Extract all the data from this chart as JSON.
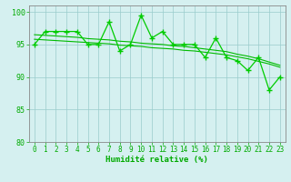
{
  "x": [
    0,
    1,
    2,
    3,
    4,
    5,
    6,
    7,
    8,
    9,
    10,
    11,
    12,
    13,
    14,
    15,
    16,
    17,
    18,
    19,
    20,
    21,
    22,
    23
  ],
  "y_main": [
    95,
    97,
    97,
    97,
    97,
    95,
    95,
    98.5,
    94,
    95,
    99.5,
    96,
    97,
    95,
    95,
    95,
    93,
    96,
    93,
    92.5,
    91,
    93,
    88,
    90
  ],
  "y_trend1": [
    96.5,
    96.4,
    96.3,
    96.2,
    96.1,
    95.9,
    95.8,
    95.7,
    95.5,
    95.4,
    95.2,
    95.1,
    95.0,
    94.8,
    94.7,
    94.5,
    94.3,
    94.1,
    93.9,
    93.5,
    93.2,
    92.8,
    92.3,
    91.8
  ],
  "y_trend2": [
    95.8,
    95.7,
    95.6,
    95.5,
    95.4,
    95.3,
    95.2,
    95.1,
    94.9,
    94.8,
    94.7,
    94.5,
    94.4,
    94.3,
    94.1,
    94.0,
    93.8,
    93.6,
    93.4,
    93.1,
    92.8,
    92.4,
    92.0,
    91.5
  ],
  "line_color": "#00cc00",
  "trend_color": "#00bb00",
  "bg_color": "#d5f0f0",
  "grid_color": "#99cccc",
  "axis_color": "#888888",
  "text_color": "#00aa00",
  "ylim": [
    80,
    101
  ],
  "yticks": [
    80,
    85,
    90,
    95,
    100
  ],
  "xlabel": "Humidité relative (%)",
  "marker": "+",
  "linewidth": 0.9,
  "marker_size": 4
}
